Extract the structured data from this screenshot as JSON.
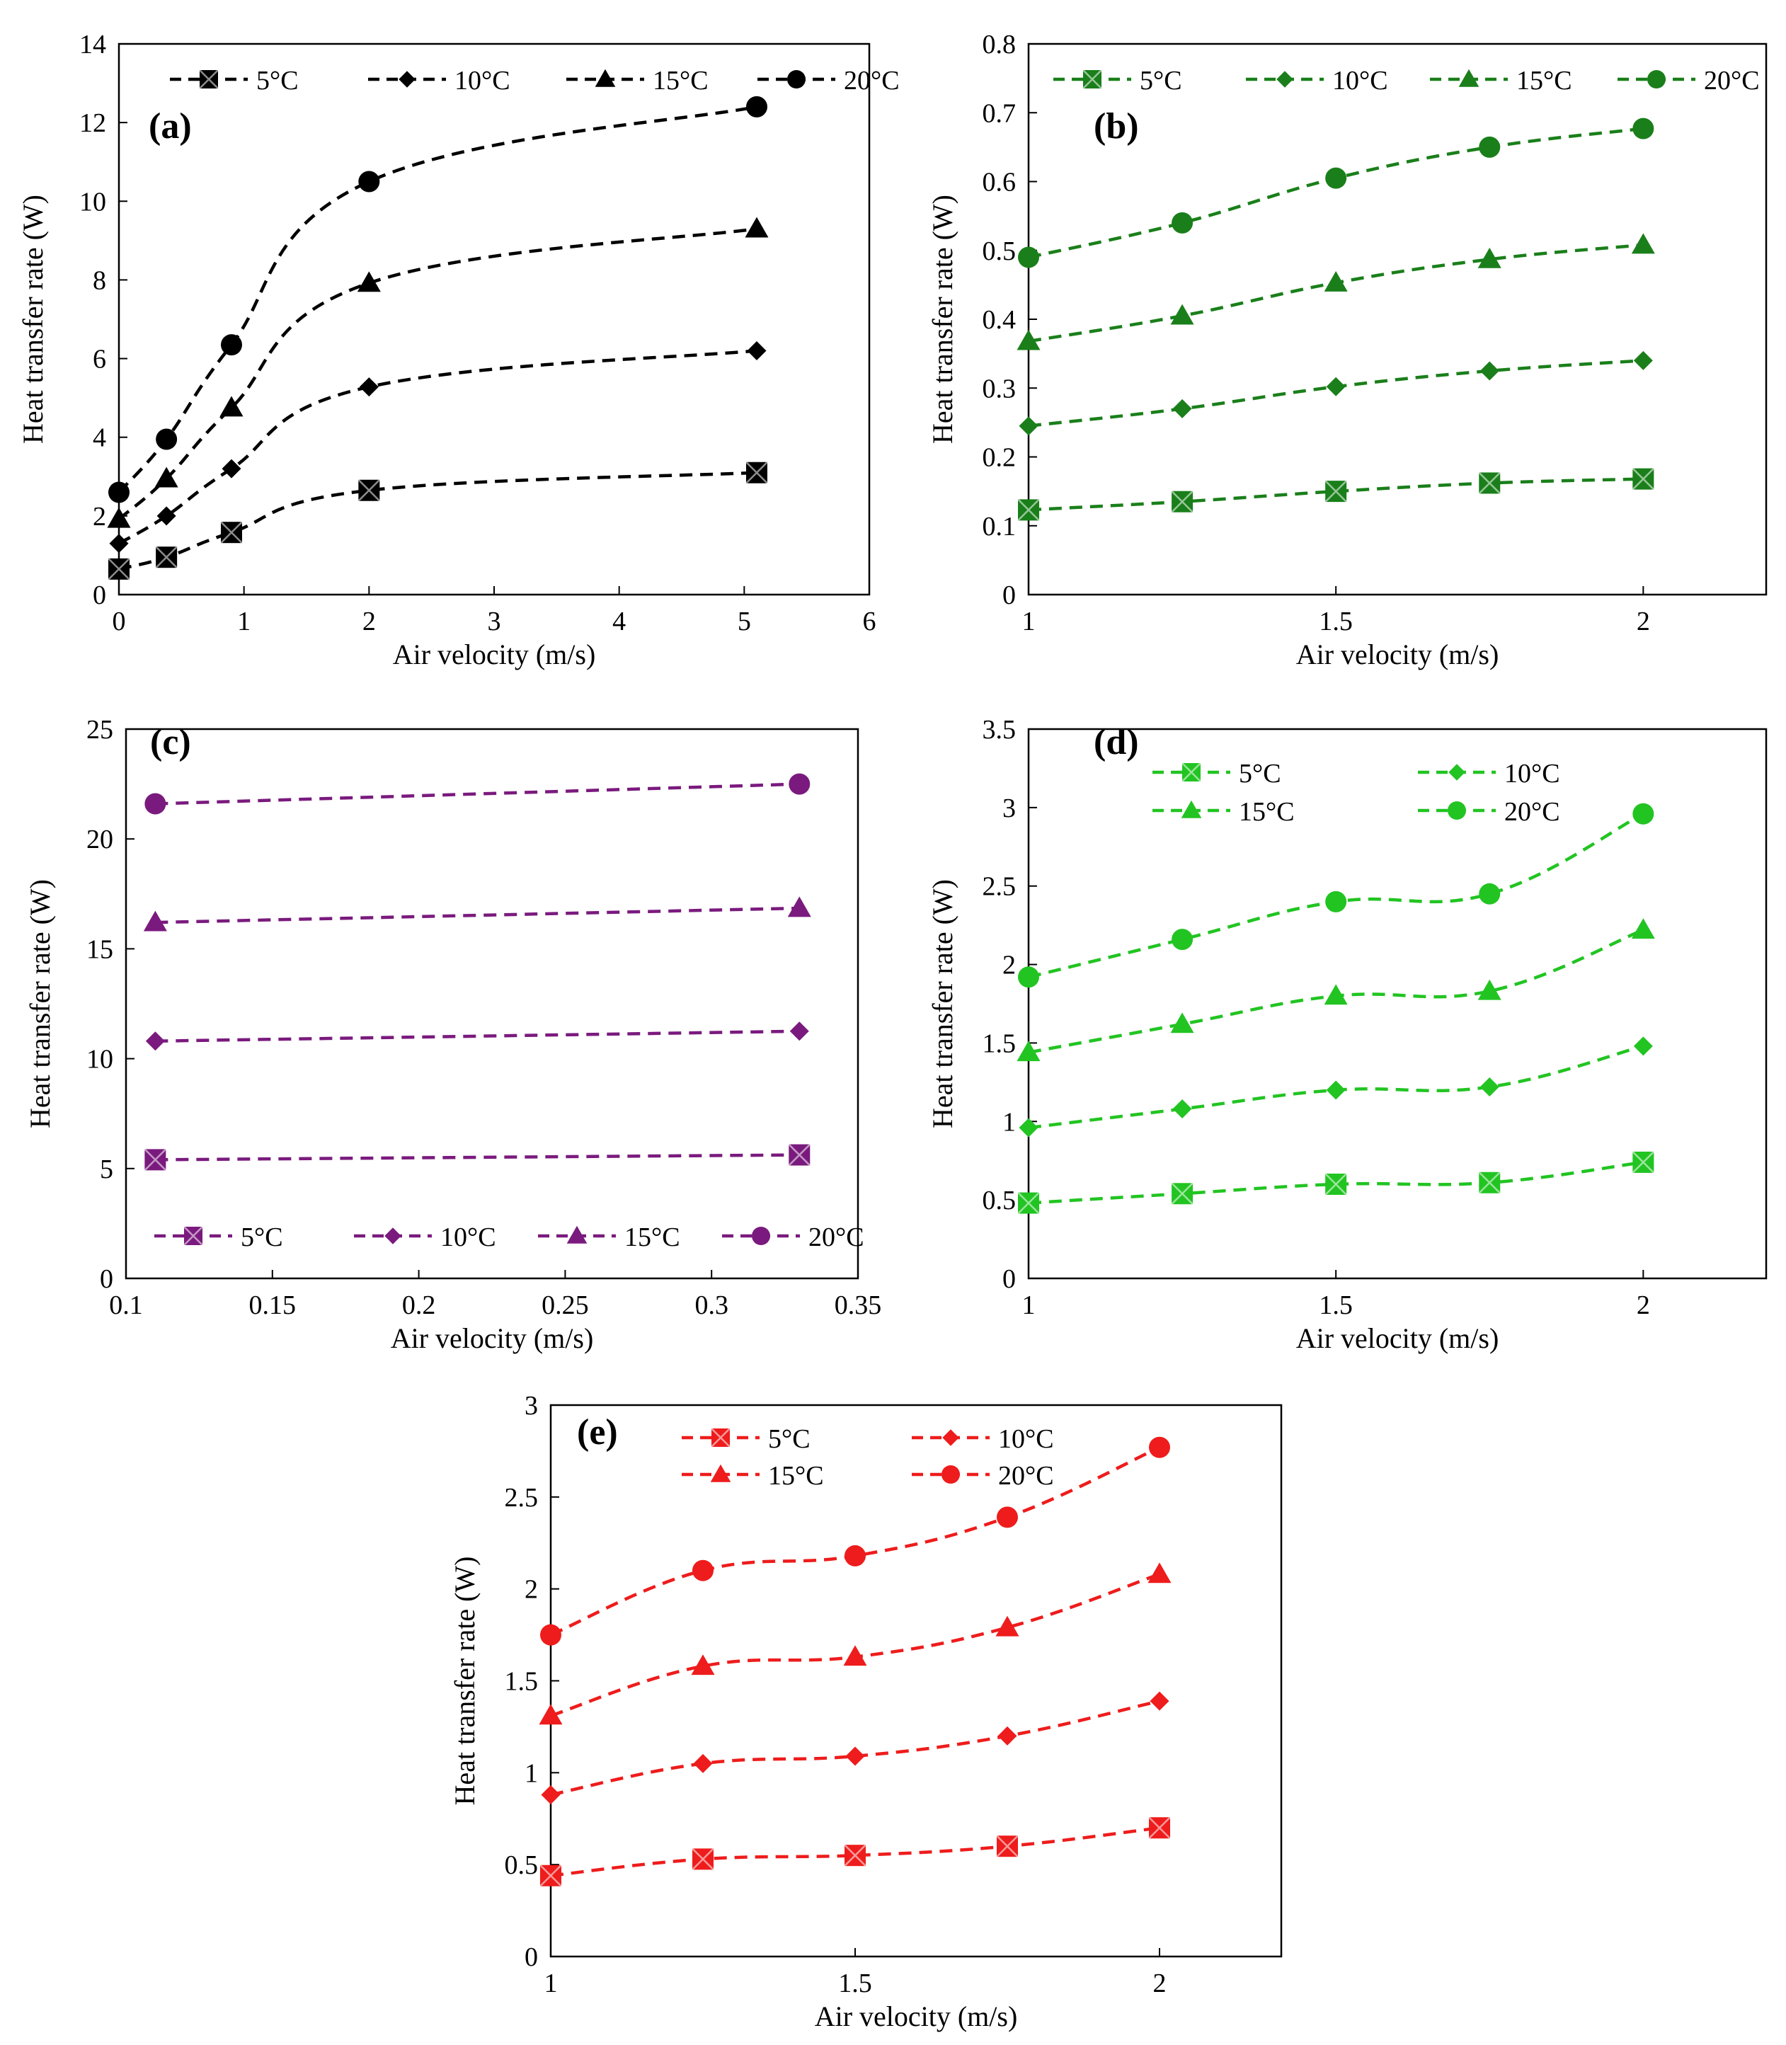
{
  "chart_data": [
    {
      "id": "a",
      "type": "line",
      "panel_label": "(a)",
      "color": "#000000",
      "xlabel": "Air velocity (m/s)",
      "ylabel": "Heat transfer rate (W)",
      "xlim": [
        0,
        6
      ],
      "ylim": [
        0,
        14
      ],
      "xticks": [
        0,
        1,
        2,
        3,
        4,
        5,
        6
      ],
      "xtick_labels": [
        "0",
        "1",
        "2",
        "3",
        "4",
        "5",
        "6"
      ],
      "yticks": [
        0,
        2,
        4,
        6,
        8,
        10,
        12,
        14
      ],
      "ytick_labels": [
        "0",
        "2",
        "4",
        "6",
        "8",
        "10",
        "12",
        "14"
      ],
      "x": [
        0,
        0.38,
        0.9,
        2.0,
        5.1
      ],
      "series": [
        {
          "name": "5°C",
          "marker": "square-x",
          "values": [
            0.65,
            0.95,
            1.58,
            2.65,
            3.1
          ]
        },
        {
          "name": "10°C",
          "marker": "diamond",
          "values": [
            1.3,
            2.0,
            3.2,
            5.28,
            6.2
          ]
        },
        {
          "name": "15°C",
          "marker": "triangle",
          "values": [
            1.92,
            2.95,
            4.75,
            7.92,
            9.3
          ]
        },
        {
          "name": "20°C",
          "marker": "circle",
          "values": [
            2.6,
            3.95,
            6.35,
            10.5,
            12.4
          ]
        }
      ],
      "legend_position": "top"
    },
    {
      "id": "b",
      "type": "line",
      "panel_label": "(b)",
      "color": "#1a7f1a",
      "xlabel": "Air velocity (m/s)",
      "ylabel": "Heat transfer rate (W)",
      "xlim": [
        1,
        2.2
      ],
      "ylim": [
        0,
        0.8
      ],
      "xticks": [
        1,
        1.5,
        2
      ],
      "xtick_labels": [
        "1",
        "1.5",
        "2"
      ],
      "yticks": [
        0,
        0.1,
        0.2,
        0.3,
        0.4,
        0.5,
        0.6,
        0.7,
        0.8
      ],
      "ytick_labels": [
        "0",
        "0.1",
        "0.2",
        "0.3",
        "0.4",
        "0.5",
        "0.6",
        "0.7",
        "0.8"
      ],
      "x": [
        1,
        1.25,
        1.5,
        1.75,
        2
      ],
      "series": [
        {
          "name": "5°C",
          "marker": "square-x",
          "values": [
            0.123,
            0.135,
            0.15,
            0.162,
            0.168
          ]
        },
        {
          "name": "10°C",
          "marker": "diamond",
          "values": [
            0.245,
            0.27,
            0.302,
            0.325,
            0.34
          ]
        },
        {
          "name": "15°C",
          "marker": "triangle",
          "values": [
            0.368,
            0.405,
            0.453,
            0.487,
            0.508
          ]
        },
        {
          "name": "20°C",
          "marker": "circle",
          "values": [
            0.49,
            0.54,
            0.605,
            0.65,
            0.677
          ]
        }
      ],
      "legend_position": "top"
    },
    {
      "id": "c",
      "type": "line",
      "panel_label": "(c)",
      "color": "#7a1a7e",
      "xlabel": "Air velocity (m/s)",
      "ylabel": "Heat transfer rate (W)",
      "xlim": [
        0.1,
        0.35
      ],
      "ylim": [
        0,
        25
      ],
      "xticks": [
        0.1,
        0.15,
        0.2,
        0.25,
        0.3,
        0.35
      ],
      "xtick_labels": [
        "0.1",
        "0.15",
        "0.2",
        "0.25",
        "0.3",
        "0.35"
      ],
      "yticks": [
        0,
        5,
        10,
        15,
        20,
        25
      ],
      "ytick_labels": [
        "0",
        "5",
        "10",
        "15",
        "20",
        "25"
      ],
      "x": [
        0.11,
        0.33
      ],
      "series": [
        {
          "name": "5°C",
          "marker": "square-x",
          "values": [
            5.4,
            5.62
          ]
        },
        {
          "name": "10°C",
          "marker": "diamond",
          "values": [
            10.8,
            11.25
          ]
        },
        {
          "name": "15°C",
          "marker": "triangle",
          "values": [
            16.2,
            16.85
          ]
        },
        {
          "name": "20°C",
          "marker": "circle",
          "values": [
            21.6,
            22.5
          ]
        }
      ],
      "legend_position": "bottom"
    },
    {
      "id": "d",
      "type": "line",
      "panel_label": "(d)",
      "color": "#22c422",
      "xlabel": "Air velocity (m/s)",
      "ylabel": "Heat transfer rate (W)",
      "xlim": [
        1,
        2.2
      ],
      "ylim": [
        0,
        3.5
      ],
      "xticks": [
        1,
        1.5,
        2
      ],
      "xtick_labels": [
        "1",
        "1.5",
        "2"
      ],
      "yticks": [
        0,
        0.5,
        1,
        1.5,
        2,
        2.5,
        3,
        3.5
      ],
      "ytick_labels": [
        "0",
        "0.5",
        "1",
        "1.5",
        "2",
        "2.5",
        "3",
        "3.5"
      ],
      "x": [
        1,
        1.25,
        1.5,
        1.75,
        2
      ],
      "series": [
        {
          "name": "5°C",
          "marker": "square-x",
          "values": [
            0.48,
            0.54,
            0.6,
            0.61,
            0.74
          ]
        },
        {
          "name": "10°C",
          "marker": "diamond",
          "values": [
            0.96,
            1.08,
            1.2,
            1.22,
            1.48
          ]
        },
        {
          "name": "15°C",
          "marker": "triangle",
          "values": [
            1.44,
            1.62,
            1.8,
            1.83,
            2.22
          ]
        },
        {
          "name": "20°C",
          "marker": "circle",
          "values": [
            1.92,
            2.16,
            2.4,
            2.45,
            2.96
          ]
        }
      ],
      "legend_position": "top, two columns"
    },
    {
      "id": "e",
      "type": "line",
      "panel_label": "(e)",
      "color": "#ee1c1c",
      "xlabel": "Air velocity (m/s)",
      "ylabel": "Heat transfer rate (W)",
      "xlim": [
        1,
        2.2
      ],
      "ylim": [
        0,
        3
      ],
      "xticks": [
        1,
        1.5,
        2
      ],
      "xtick_labels": [
        "1",
        "1.5",
        "2"
      ],
      "yticks": [
        0,
        0.5,
        1,
        1.5,
        2,
        2.5,
        3
      ],
      "ytick_labels": [
        "0",
        "0.5",
        "1",
        "1.5",
        "2",
        "2.5",
        "3"
      ],
      "x": [
        1,
        1.25,
        1.5,
        1.75,
        2
      ],
      "series": [
        {
          "name": "5°C",
          "marker": "square-x",
          "values": [
            0.44,
            0.53,
            0.55,
            0.6,
            0.7
          ]
        },
        {
          "name": "10°C",
          "marker": "diamond",
          "values": [
            0.88,
            1.05,
            1.09,
            1.2,
            1.39
          ]
        },
        {
          "name": "15°C",
          "marker": "triangle",
          "values": [
            1.31,
            1.58,
            1.63,
            1.79,
            2.08
          ]
        },
        {
          "name": "20°C",
          "marker": "circle",
          "values": [
            1.75,
            2.1,
            2.18,
            2.39,
            2.77
          ]
        }
      ],
      "legend_position": "top, two columns"
    }
  ]
}
